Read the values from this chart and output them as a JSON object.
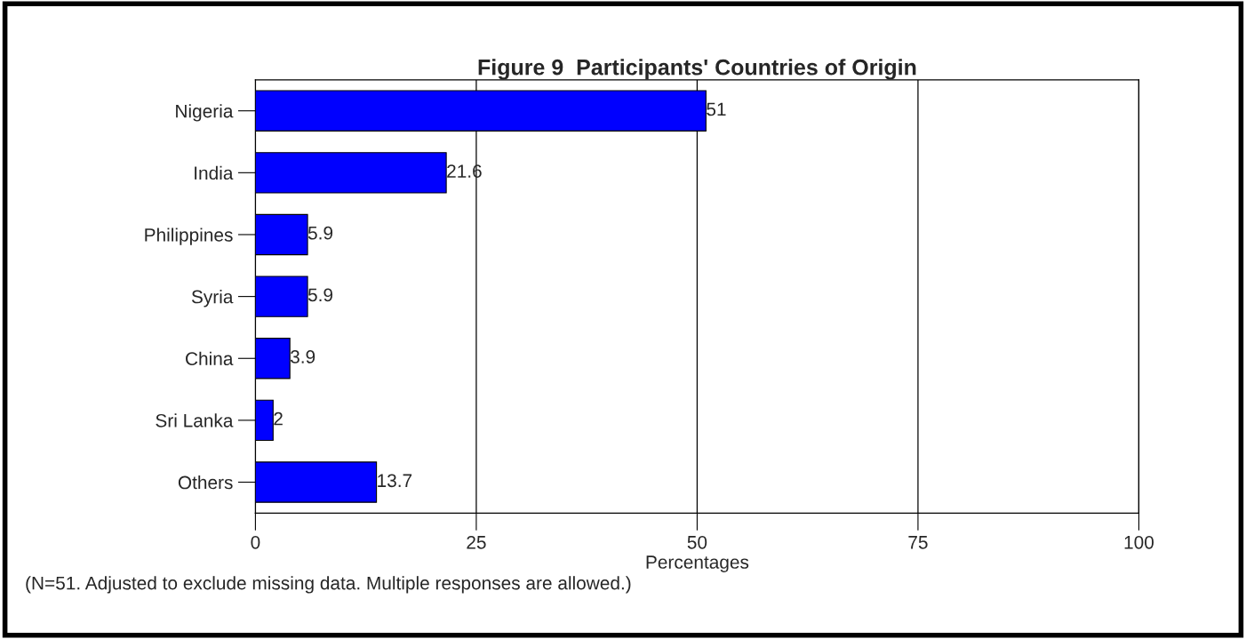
{
  "chart_data": {
    "type": "bar",
    "orientation": "horizontal",
    "title": "Figure 9  Participants' Countries of Origin",
    "categories": [
      "Nigeria",
      "India",
      "Philippines",
      "Syria",
      "China",
      "Sri Lanka",
      "Others"
    ],
    "values": [
      51,
      21.6,
      5.9,
      5.9,
      3.9,
      2,
      13.7
    ],
    "color": "#0000ff",
    "xlabel": "Percentages",
    "xlim": [
      0,
      100
    ],
    "xticks": [
      0,
      25,
      50,
      75,
      100
    ],
    "grid": "x",
    "data_labels": true,
    "annotations": [
      "(N=51. Adjusted to exclude missing data. Multiple responses are allowed.)"
    ]
  }
}
